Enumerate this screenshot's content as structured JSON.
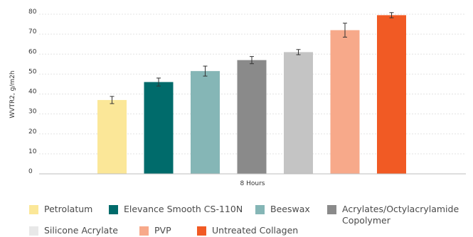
{
  "chart_data": {
    "type": "bar",
    "title": "",
    "xlabel": "",
    "ylabel": "WVTR2, g/m2h",
    "ylim": [
      0,
      80
    ],
    "yticks": [
      0,
      10,
      20,
      30,
      40,
      50,
      60,
      70,
      80
    ],
    "categories": [
      "8 Hours"
    ],
    "grid": "horizontal dashed",
    "legend_position": "bottom",
    "series": [
      {
        "name": "Petrolatum",
        "values": [
          37
        ],
        "error": [
          1.8
        ],
        "color": "#fbe798"
      },
      {
        "name": "Elevance Smooth CS-110N",
        "values": [
          46
        ],
        "error": [
          2.0
        ],
        "color": "#006b6b"
      },
      {
        "name": "Beeswax",
        "values": [
          51.5
        ],
        "error": [
          2.5
        ],
        "color": "#85b6b6"
      },
      {
        "name": "Acrylates/Octylacrylamide Copolymer",
        "values": [
          57
        ],
        "error": [
          1.8
        ],
        "color": "#8a8a8a"
      },
      {
        "name": "Silicone Acrylate",
        "values": [
          61
        ],
        "error": [
          1.3
        ],
        "color": "#c4c4c4"
      },
      {
        "name": "PVP",
        "values": [
          72
        ],
        "error": [
          3.5
        ],
        "color": "#f7a98a"
      },
      {
        "name": "Untreated Collagen",
        "values": [
          79.5
        ],
        "error": [
          1.3
        ],
        "color": "#f15a24"
      }
    ]
  }
}
